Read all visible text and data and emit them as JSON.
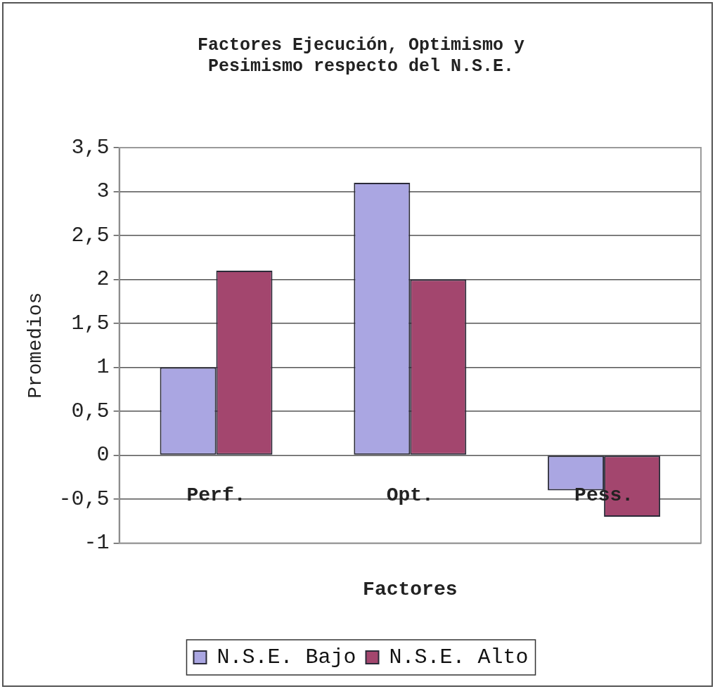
{
  "chart_data": {
    "type": "bar",
    "title": "Factores Ejecución, Optimismo y\nPesimismo respecto del N.S.E.",
    "xlabel": "Factores",
    "ylabel": "Promedios",
    "categories": [
      "Perf.",
      "Opt.",
      "Pess."
    ],
    "series": [
      {
        "name": "N.S.E. Bajo",
        "color": "#aaa6e2",
        "values": [
          1.0,
          3.1,
          -0.4
        ]
      },
      {
        "name": "N.S.E. Alto",
        "color": "#a3466e",
        "values": [
          2.1,
          2.0,
          -0.7
        ]
      }
    ],
    "ylim": [
      -1,
      3.5
    ],
    "yticks": [
      -1,
      {
        "value": -0.5,
        "label": "-0,5"
      },
      0,
      {
        "value": 0.5,
        "label": "0,5"
      },
      1,
      {
        "value": 1.5,
        "label": "1,5"
      },
      2,
      {
        "value": 2.5,
        "label": "2,5"
      },
      3,
      {
        "value": 3.5,
        "label": "3,5"
      }
    ],
    "grid": "y",
    "legend": "bottom"
  }
}
